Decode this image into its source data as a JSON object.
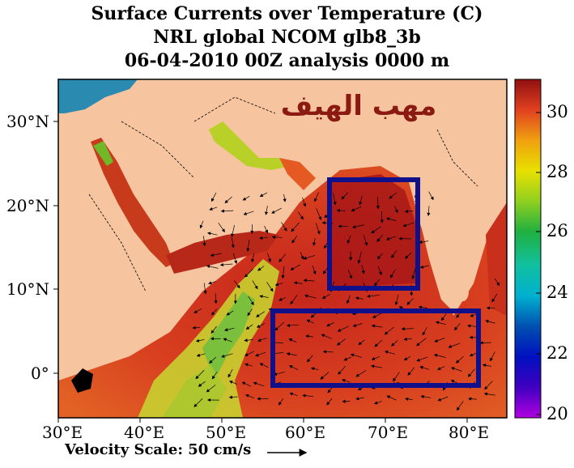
{
  "title": {
    "line1": "Surface Currents over Temperature (C)",
    "line2": "NRL global NCOM glb8_3b",
    "line3": "06-04-2010 00Z analysis   0000 m"
  },
  "watermark": "مهب الهيف",
  "axes": {
    "x_ticks": [
      "30°E",
      "40°E",
      "50°E",
      "60°E",
      "70°E",
      "80°E"
    ],
    "y_ticks": [
      "30°N",
      "20°N",
      "10°N",
      "0°"
    ]
  },
  "colorbar": {
    "ticks": [
      "30",
      "28",
      "26",
      "24",
      "22",
      "20"
    ],
    "range": [
      20,
      31
    ]
  },
  "velocity_scale": {
    "label": "Velocity Scale:  50 cm/s"
  },
  "colors": {
    "land": "#f6c49f",
    "warm": "#b2211b",
    "box": "#10108a"
  },
  "highlight_boxes": [
    {
      "name": "arabian-sea-box",
      "lon": [
        63,
        74
      ],
      "lat": [
        10,
        23
      ]
    },
    {
      "name": "equatorial-box",
      "lon": [
        56,
        82
      ],
      "lat": [
        -1,
        7
      ]
    }
  ]
}
